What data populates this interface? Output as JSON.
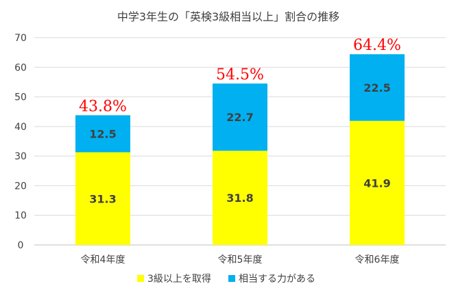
{
  "chart_data": {
    "type": "bar",
    "stacked": true,
    "title": "中学3年生の「英検3級相当以上」割合の推移",
    "categories": [
      "令和4年度",
      "令和5年度",
      "令和6年度"
    ],
    "series": [
      {
        "name": "3級以上を取得",
        "values": [
          31.3,
          31.8,
          41.9
        ],
        "color": "#ffff00"
      },
      {
        "name": "相当する力がある",
        "values": [
          12.5,
          22.7,
          22.5
        ],
        "color": "#00b0f0"
      }
    ],
    "totals": [
      "43.8%",
      "54.5%",
      "64.4%"
    ],
    "ylim": [
      0,
      70
    ],
    "yticks": [
      0,
      10,
      20,
      30,
      40,
      50,
      60,
      70
    ],
    "grid": true,
    "legend": "bottom"
  }
}
